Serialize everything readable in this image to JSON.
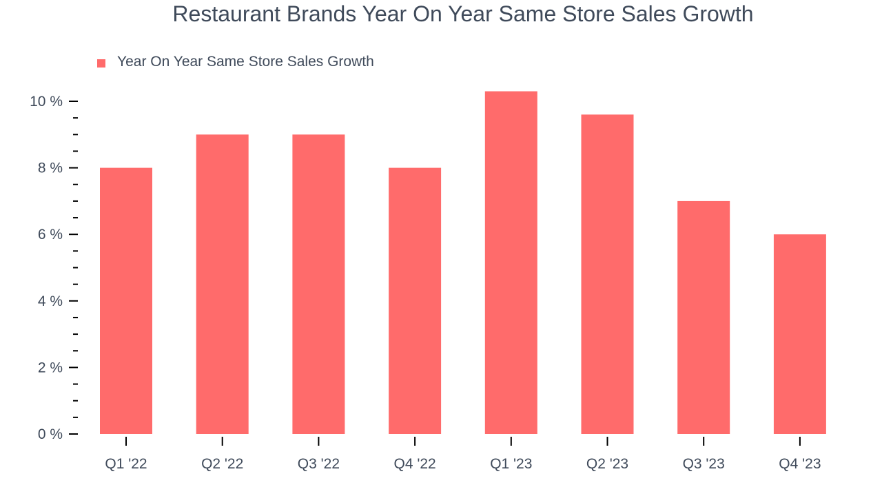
{
  "title": "Restaurant Brands Year On Year Same Store Sales Growth",
  "legend": {
    "items": [
      {
        "label": "Year On Year Same Store Sales Growth",
        "color": "#ff6b6b"
      }
    ]
  },
  "colors": {
    "bar": "#ff6b6b",
    "text": "#3f4a5a",
    "axis": "#000000"
  },
  "chart_data": {
    "type": "bar",
    "title": "Restaurant Brands Year On Year Same Store Sales Growth",
    "xlabel": "",
    "ylabel": "",
    "categories": [
      "Q1 '22",
      "Q2 '22",
      "Q3 '22",
      "Q4 '22",
      "Q1 '23",
      "Q2 '23",
      "Q3 '23",
      "Q4 '23"
    ],
    "series": [
      {
        "name": "Year On Year Same Store Sales Growth",
        "values": [
          8.0,
          9.0,
          9.0,
          8.0,
          10.3,
          9.6,
          7.0,
          6.0
        ]
      }
    ],
    "values": [
      8.0,
      9.0,
      9.0,
      8.0,
      10.3,
      9.6,
      7.0,
      6.0
    ],
    "ylim": [
      0,
      10.3
    ],
    "yticks": [
      0,
      2,
      4,
      6,
      8,
      10
    ],
    "ytick_labels": [
      "0 %",
      "2 %",
      "4 %",
      "6 %",
      "8 %",
      "10 %"
    ],
    "minor_ticks_per_major": 3,
    "grid": false,
    "legend_position": "top-left",
    "unit": "%"
  }
}
